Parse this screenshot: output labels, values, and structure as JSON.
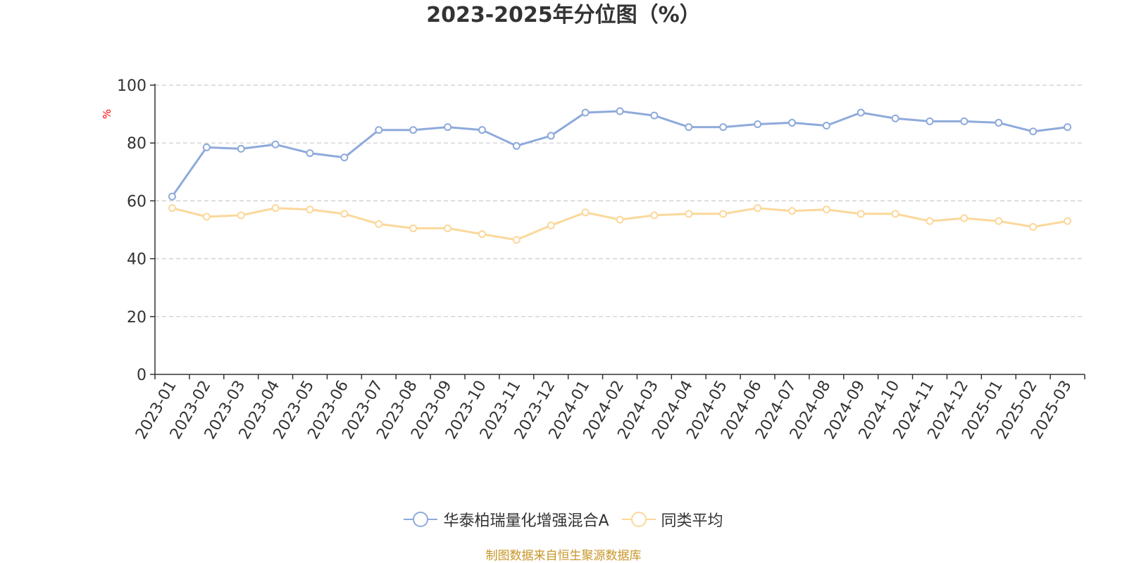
{
  "chart_data": {
    "type": "line",
    "title": "2023-2025年分位图（%）",
    "ylabel": "%",
    "xlabel": "",
    "ylim": [
      0,
      100
    ],
    "yticks": [
      0,
      20,
      40,
      60,
      80,
      100
    ],
    "grid": true,
    "legend_position": "bottom",
    "categories": [
      "2023-01",
      "2023-02",
      "2023-03",
      "2023-04",
      "2023-05",
      "2023-06",
      "2023-07",
      "2023-08",
      "2023-09",
      "2023-10",
      "2023-11",
      "2023-12",
      "2024-01",
      "2024-02",
      "2024-03",
      "2024-04",
      "2024-05",
      "2024-06",
      "2024-07",
      "2024-08",
      "2024-09",
      "2024-10",
      "2024-11",
      "2024-12",
      "2025-01",
      "2025-02",
      "2025-03"
    ],
    "series": [
      {
        "name": "华泰柏瑞量化增强混合A",
        "color": "#8eaadb",
        "values": [
          61.5,
          78.5,
          78,
          79.5,
          76.5,
          75,
          84.5,
          84.5,
          85.5,
          84.5,
          79,
          82.5,
          90.5,
          91,
          89.5,
          85.5,
          85.5,
          86.5,
          87,
          86,
          90.5,
          88.5,
          87.5,
          87.5,
          87,
          84,
          85.5
        ]
      },
      {
        "name": "同类平均",
        "color": "#fbd89a",
        "values": [
          57.5,
          54.5,
          55,
          57.5,
          57,
          55.5,
          52,
          50.5,
          50.5,
          48.5,
          46.5,
          51.5,
          56,
          53.5,
          55,
          55.5,
          55.5,
          57.5,
          56.5,
          57,
          55.5,
          55.5,
          53,
          54,
          53,
          51,
          53
        ]
      }
    ]
  },
  "source_note": "制图数据来自恒生聚源数据库",
  "colors": {
    "title": "#333333",
    "axis": "#333333",
    "grid": "#cccccc",
    "ylabel": "#ff0000",
    "source_note": "#c8962a"
  }
}
